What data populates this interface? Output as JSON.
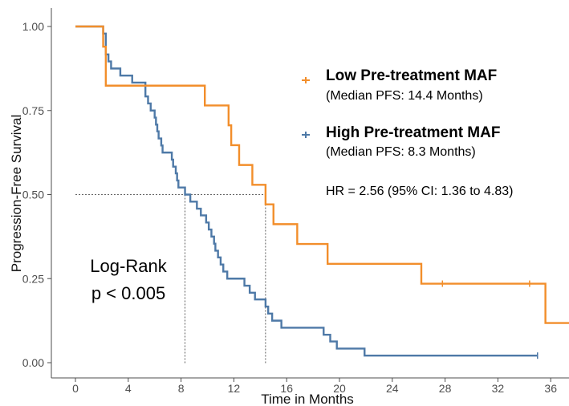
{
  "chart_data": {
    "type": "line",
    "title": "",
    "xlabel": "Time in Months",
    "ylabel": "Progression-Free Survival",
    "xlim": [
      -2,
      37.5
    ],
    "ylim": [
      -0.04,
      1.05
    ],
    "x_ticks": [
      0,
      4,
      8,
      12,
      16,
      20,
      24,
      28,
      32,
      36
    ],
    "y_ticks": [
      0.0,
      0.25,
      0.5,
      0.75,
      1.0
    ],
    "x_tick_labels": [
      "0",
      "4",
      "8",
      "12",
      "16",
      "20",
      "24",
      "28",
      "32",
      "36"
    ],
    "y_tick_labels": [
      "0.00",
      "0.25",
      "0.50",
      "0.75",
      "1.00"
    ],
    "grid": false,
    "series": [
      {
        "name": "Low Pre-treatment MAF",
        "subtitle": "(Median PFS: 14.4 Months)",
        "color": "#f28e2b",
        "steps": [
          [
            0,
            1.0
          ],
          [
            2.1,
            0.94
          ],
          [
            2.3,
            0.824
          ],
          [
            9.8,
            0.765
          ],
          [
            11.6,
            0.706
          ],
          [
            11.8,
            0.647
          ],
          [
            12.4,
            0.588
          ],
          [
            13.4,
            0.529
          ],
          [
            14.4,
            0.471
          ],
          [
            15.0,
            0.412
          ],
          [
            16.8,
            0.353
          ],
          [
            19.1,
            0.294
          ],
          [
            26.2,
            0.235
          ],
          [
            35.6,
            0.118
          ],
          [
            37.5,
            0.118
          ]
        ],
        "censor_x": [
          27.8,
          34.4
        ]
      },
      {
        "name": "High Pre-treatment MAF",
        "subtitle": "(Median PFS: 8.3 Months)",
        "color": "#4e79a7",
        "steps": [
          [
            0,
            1.0
          ],
          [
            2.1,
            0.979
          ],
          [
            2.3,
            0.917
          ],
          [
            2.5,
            0.896
          ],
          [
            2.7,
            0.875
          ],
          [
            3.4,
            0.854
          ],
          [
            4.3,
            0.833
          ],
          [
            5.3,
            0.792
          ],
          [
            5.5,
            0.771
          ],
          [
            5.7,
            0.75
          ],
          [
            6.0,
            0.729
          ],
          [
            6.1,
            0.708
          ],
          [
            6.2,
            0.688
          ],
          [
            6.3,
            0.667
          ],
          [
            6.5,
            0.646
          ],
          [
            6.6,
            0.625
          ],
          [
            7.3,
            0.604
          ],
          [
            7.4,
            0.583
          ],
          [
            7.6,
            0.563
          ],
          [
            7.7,
            0.542
          ],
          [
            7.8,
            0.521
          ],
          [
            8.3,
            0.5
          ],
          [
            8.7,
            0.479
          ],
          [
            9.2,
            0.458
          ],
          [
            9.5,
            0.438
          ],
          [
            9.9,
            0.417
          ],
          [
            10.1,
            0.396
          ],
          [
            10.3,
            0.375
          ],
          [
            10.5,
            0.354
          ],
          [
            10.6,
            0.333
          ],
          [
            10.8,
            0.313
          ],
          [
            11.0,
            0.292
          ],
          [
            11.2,
            0.271
          ],
          [
            11.5,
            0.25
          ],
          [
            12.8,
            0.229
          ],
          [
            13.2,
            0.208
          ],
          [
            13.6,
            0.188
          ],
          [
            14.4,
            0.167
          ],
          [
            14.6,
            0.146
          ],
          [
            14.9,
            0.125
          ],
          [
            15.6,
            0.104
          ],
          [
            18.8,
            0.083
          ],
          [
            19.3,
            0.063
          ],
          [
            19.8,
            0.042
          ],
          [
            21.9,
            0.021
          ],
          [
            35.0,
            0.021
          ]
        ],
        "censor_x": [
          35.0
        ]
      }
    ],
    "median_lines": [
      8.3,
      14.4
    ],
    "legend_placement": "top-right",
    "annotations": {
      "hr_text": "HR = 2.56 (95% CI: 1.36 to 4.83)",
      "logrank_title": "Log-Rank",
      "logrank_p": "p < 0.005"
    }
  }
}
